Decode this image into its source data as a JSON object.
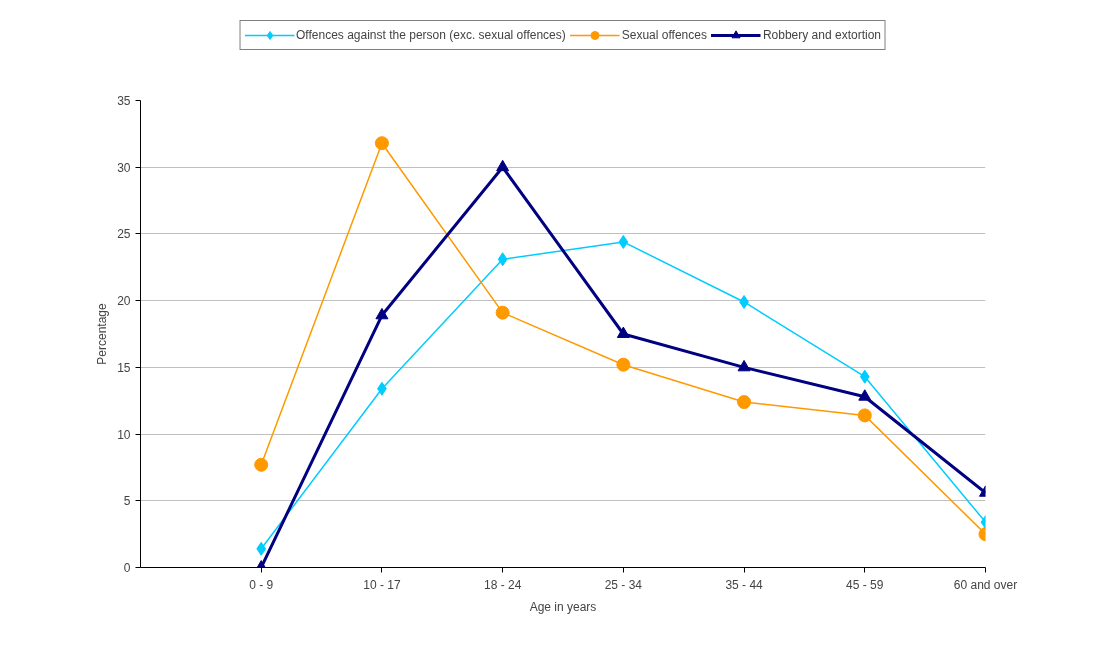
{
  "chart_data": {
    "type": "line",
    "xlabel": "Age in years",
    "ylabel": "Percentage",
    "categories": [
      null,
      "0 - 9",
      "10 - 17",
      "18 - 24",
      "25 - 34",
      "35 - 44",
      "45 - 59",
      "60 and over"
    ],
    "series": [
      {
        "name": "Offences against the person (exc. sexual offences)",
        "color": "#00ccff",
        "marker": "diamond",
        "values": [
          null,
          1.4,
          13.4,
          23.1,
          24.4,
          19.9,
          14.3,
          3.4
        ]
      },
      {
        "name": "Sexual offences",
        "color": "#ff9900",
        "marker": "circle",
        "values": [
          null,
          7.7,
          31.8,
          19.1,
          15.2,
          12.4,
          11.4,
          2.5
        ]
      },
      {
        "name": "Robbery and extortion",
        "color": "#000080",
        "marker": "triangle",
        "values": [
          null,
          0,
          18.9,
          30.0,
          17.5,
          15.0,
          12.8,
          5.6
        ]
      }
    ],
    "ylim": [
      0,
      35
    ],
    "yticks": [
      0,
      5,
      10,
      15,
      20,
      25,
      30,
      35
    ],
    "grid": "y",
    "legend": "top"
  }
}
